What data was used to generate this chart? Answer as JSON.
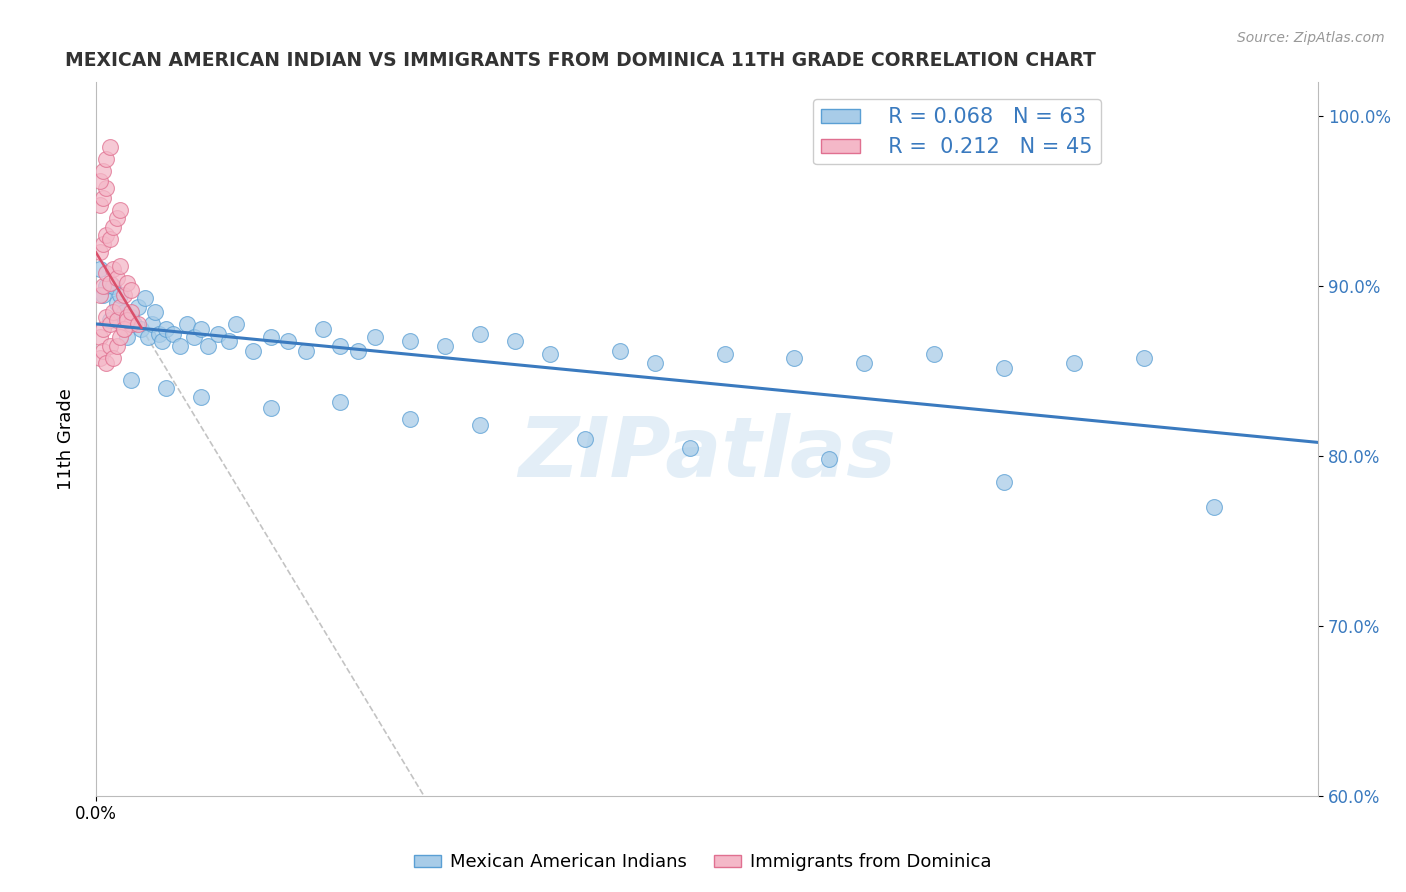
{
  "title": "MEXICAN AMERICAN INDIAN VS IMMIGRANTS FROM DOMINICA 11TH GRADE CORRELATION CHART",
  "source": "Source: ZipAtlas.com",
  "ylabel": "11th Grade",
  "blue_R": 0.068,
  "blue_N": 63,
  "pink_R": 0.212,
  "pink_N": 45,
  "blue_label": "Mexican American Indians",
  "pink_label": "Immigrants from Dominica",
  "blue_color": "#a8cce8",
  "pink_color": "#f4b8c8",
  "blue_edge_color": "#5a9fd4",
  "pink_edge_color": "#e07090",
  "blue_trend_color": "#3a7abf",
  "pink_trend_color": "#d94f6a",
  "watermark_color": "#c8dff0",
  "xlim": [
    0.0,
    0.35
  ],
  "ylim": [
    0.6,
    1.02
  ],
  "y_ticks_right": [
    0.6,
    0.7,
    0.8,
    0.9,
    1.0
  ],
  "y_tick_labels_right": [
    "60.0%",
    "70.0%",
    "80.0%",
    "90.0%",
    "100.0%"
  ],
  "blue_x": [
    0.001,
    0.002,
    0.003,
    0.004,
    0.005,
    0.006,
    0.007,
    0.008,
    0.009,
    0.01,
    0.011,
    0.012,
    0.013,
    0.014,
    0.015,
    0.016,
    0.017,
    0.018,
    0.019,
    0.02,
    0.022,
    0.024,
    0.026,
    0.028,
    0.03,
    0.032,
    0.035,
    0.038,
    0.04,
    0.045,
    0.05,
    0.055,
    0.06,
    0.065,
    0.07,
    0.075,
    0.08,
    0.09,
    0.1,
    0.11,
    0.12,
    0.13,
    0.15,
    0.16,
    0.18,
    0.2,
    0.22,
    0.24,
    0.26,
    0.28,
    0.3,
    0.01,
    0.02,
    0.03,
    0.05,
    0.07,
    0.09,
    0.11,
    0.14,
    0.17,
    0.21,
    0.26,
    0.32
  ],
  "blue_y": [
    0.91,
    0.895,
    0.9,
    0.88,
    0.9,
    0.89,
    0.895,
    0.885,
    0.87,
    0.882,
    0.878,
    0.888,
    0.875,
    0.893,
    0.87,
    0.878,
    0.885,
    0.872,
    0.868,
    0.875,
    0.872,
    0.865,
    0.878,
    0.87,
    0.875,
    0.865,
    0.872,
    0.868,
    0.878,
    0.862,
    0.87,
    0.868,
    0.862,
    0.875,
    0.865,
    0.862,
    0.87,
    0.868,
    0.865,
    0.872,
    0.868,
    0.86,
    0.862,
    0.855,
    0.86,
    0.858,
    0.855,
    0.86,
    0.852,
    0.855,
    0.858,
    0.845,
    0.84,
    0.835,
    0.828,
    0.832,
    0.822,
    0.818,
    0.81,
    0.805,
    0.798,
    0.785,
    0.77
  ],
  "pink_x": [
    0.001,
    0.002,
    0.003,
    0.004,
    0.005,
    0.006,
    0.007,
    0.008,
    0.009,
    0.01,
    0.001,
    0.002,
    0.003,
    0.004,
    0.005,
    0.006,
    0.007,
    0.008,
    0.009,
    0.01,
    0.001,
    0.002,
    0.003,
    0.004,
    0.005,
    0.006,
    0.007,
    0.001,
    0.002,
    0.003,
    0.001,
    0.002,
    0.003,
    0.004,
    0.001,
    0.002,
    0.003,
    0.004,
    0.005,
    0.006,
    0.007,
    0.008,
    0.009,
    0.01,
    0.012
  ],
  "pink_y": [
    0.87,
    0.875,
    0.882,
    0.878,
    0.885,
    0.88,
    0.888,
    0.875,
    0.882,
    0.878,
    0.895,
    0.9,
    0.908,
    0.902,
    0.91,
    0.905,
    0.912,
    0.895,
    0.902,
    0.898,
    0.92,
    0.925,
    0.93,
    0.928,
    0.935,
    0.94,
    0.945,
    0.948,
    0.952,
    0.958,
    0.962,
    0.968,
    0.975,
    0.982,
    0.858,
    0.862,
    0.855,
    0.865,
    0.858,
    0.865,
    0.87,
    0.875,
    0.88,
    0.885,
    0.878
  ]
}
